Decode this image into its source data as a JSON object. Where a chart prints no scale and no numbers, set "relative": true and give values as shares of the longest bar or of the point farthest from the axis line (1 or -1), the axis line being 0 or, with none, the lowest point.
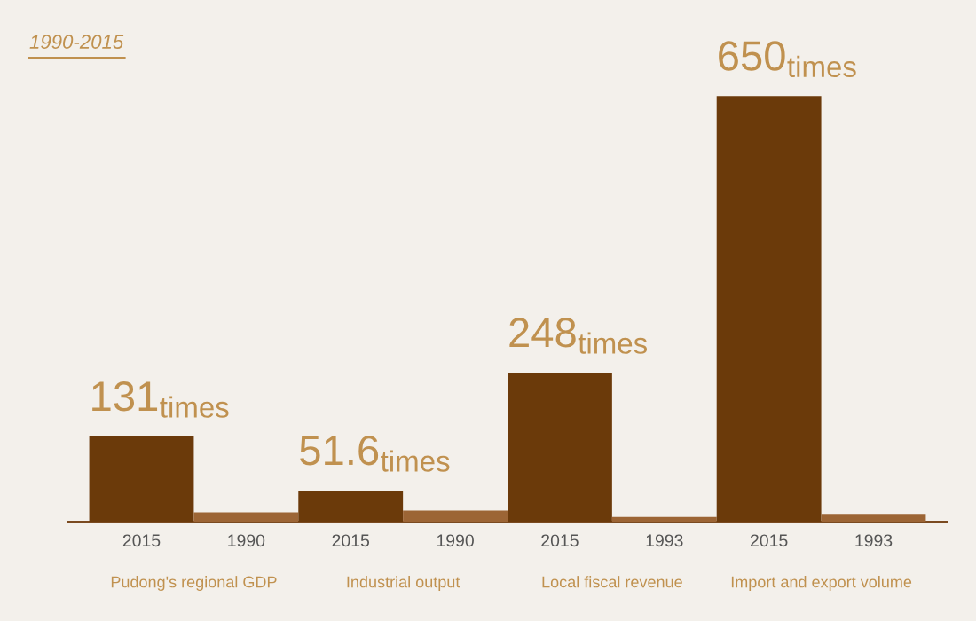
{
  "chart_data": {
    "type": "bar",
    "title": "1990-2015",
    "relative": true,
    "categories": [
      "2015",
      "1990",
      "2015",
      "1990",
      "2015",
      "1993",
      "2015",
      "1993"
    ],
    "values": [
      0.2,
      0.022,
      0.073,
      0.026,
      0.35,
      0.011,
      1,
      0.018
    ],
    "colors": [
      "#6b3a0a",
      "#9c6535",
      "#6b3a0a",
      "#9c6535",
      "#6b3a0a",
      "#9c6535",
      "#6b3a0a",
      "#9c6535"
    ],
    "annotations": [
      "131$_{times}$",
      "51.6$_{times}$",
      "248$_{times}$",
      "650$_{times}$",
      "Pudong's regional GDP",
      "Industrial output",
      "Local fiscal revenue",
      "Import and export volume"
    ],
    "grid": false,
    "legend": false
  }
}
